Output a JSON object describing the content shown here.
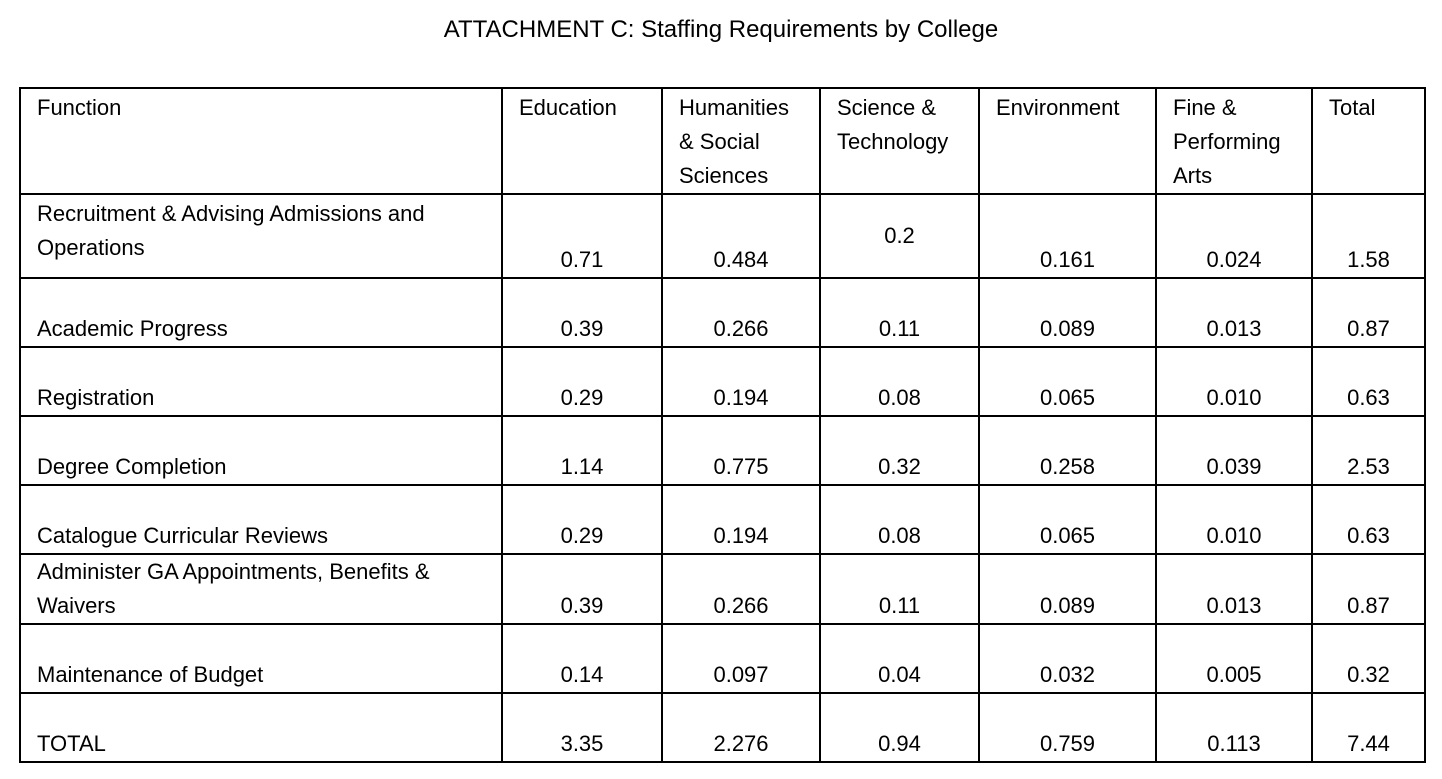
{
  "title": "ATTACHMENT C: Staffing Requirements by College",
  "table": {
    "headers": [
      "Function",
      "Education",
      "Humanities & Social Sciences",
      "Science & Technology",
      "Environment",
      "Fine & Performing Arts",
      "Total"
    ],
    "rows": [
      {
        "function": "Recruitment & Advising Admissions and Operations",
        "values": [
          "0.71",
          "0.484",
          "0.2",
          "0.161",
          "0.024",
          "1.58"
        ]
      },
      {
        "function": "Academic Progress",
        "values": [
          "0.39",
          "0.266",
          "0.11",
          "0.089",
          "0.013",
          "0.87"
        ]
      },
      {
        "function": "Registration",
        "values": [
          "0.29",
          "0.194",
          "0.08",
          "0.065",
          "0.010",
          "0.63"
        ]
      },
      {
        "function": "Degree Completion",
        "values": [
          "1.14",
          "0.775",
          "0.32",
          "0.258",
          "0.039",
          "2.53"
        ]
      },
      {
        "function": "Catalogue Curricular Reviews",
        "values": [
          "0.29",
          "0.194",
          "0.08",
          "0.065",
          "0.010",
          "0.63"
        ]
      },
      {
        "function": "Administer GA Appointments, Benefits & Waivers",
        "values": [
          "0.39",
          "0.266",
          "0.11",
          "0.089",
          "0.013",
          "0.87"
        ]
      },
      {
        "function": "Maintenance of Budget",
        "values": [
          "0.14",
          "0.097",
          "0.04",
          "0.032",
          "0.005",
          "0.32"
        ]
      },
      {
        "function": "TOTAL",
        "values": [
          "3.35",
          "2.276",
          "0.94",
          "0.759",
          "0.113",
          "7.44"
        ]
      }
    ]
  }
}
